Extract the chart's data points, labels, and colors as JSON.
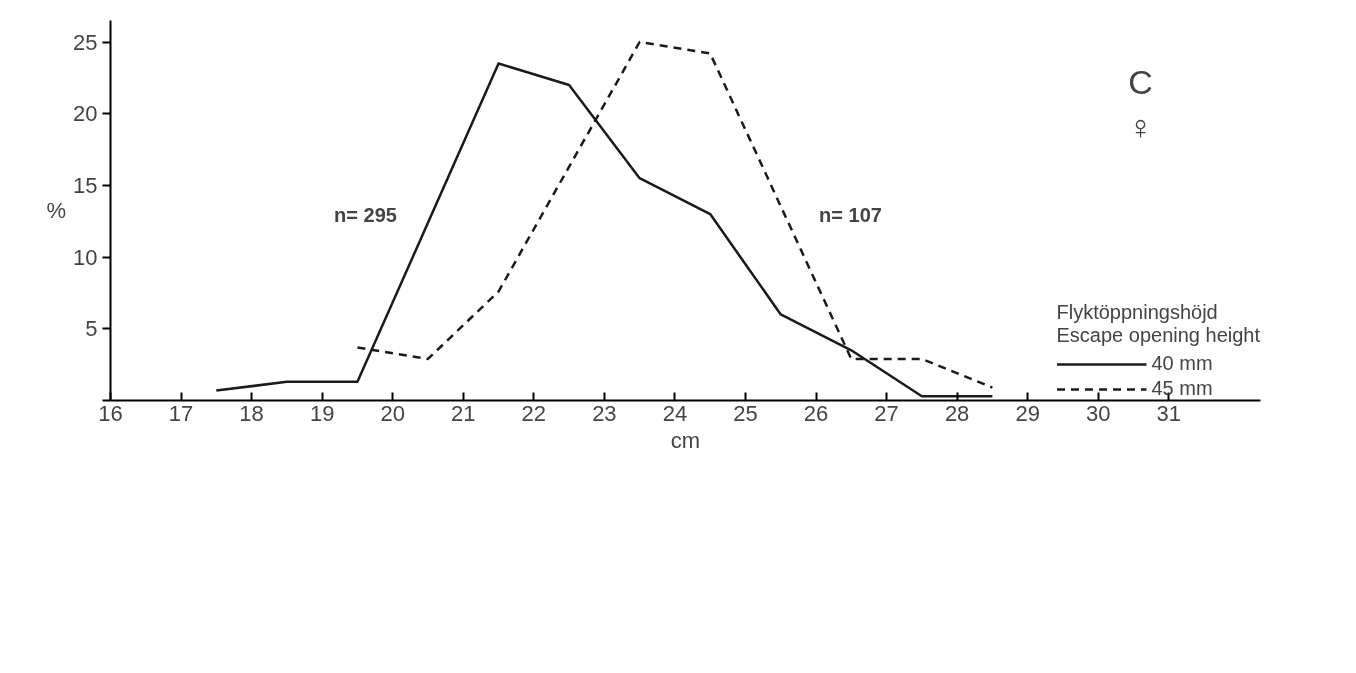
{
  "chart_data": {
    "type": "line",
    "xlabel": "cm",
    "ylabel": "%",
    "legend_title": "Flyktöppningshöjd\nEscape opening height",
    "legend": "bottom right",
    "grid": false,
    "marker": "none",
    "xlim": [
      16,
      32.3
    ],
    "ylim": [
      0,
      26.5
    ],
    "xticks": [
      16,
      17,
      18,
      19,
      20,
      21,
      22,
      23,
      24,
      25,
      26,
      27,
      28,
      29,
      30,
      31
    ],
    "yticks": [
      {
        "value": 0,
        "label": null
      },
      5,
      10,
      15,
      20,
      25
    ],
    "series": [
      {
        "name": "40 mm",
        "color": "#1a1a1a",
        "line_style": "solid",
        "x": [
          17.5,
          18.5,
          19.5,
          21.5,
          22.5,
          23.5,
          24.5,
          25.5,
          26.5,
          27.5,
          28.5
        ],
        "values": [
          0.7,
          1.3,
          1.3,
          23.5,
          22,
          15.5,
          13,
          6,
          3.5,
          0.3,
          0.3
        ]
      },
      {
        "name": "45 mm",
        "color": "#1a1a1a",
        "line_style": "dashed",
        "x": [
          19.5,
          20.5,
          21.5,
          23.5,
          24.5,
          26.5,
          27.5,
          28.5
        ],
        "values": [
          3.7,
          2.9,
          7.6,
          25,
          24.2,
          2.9,
          2.9,
          0.9
        ]
      }
    ],
    "annotations": [
      "n= 295",
      "n= 107",
      "C",
      "♀"
    ]
  }
}
